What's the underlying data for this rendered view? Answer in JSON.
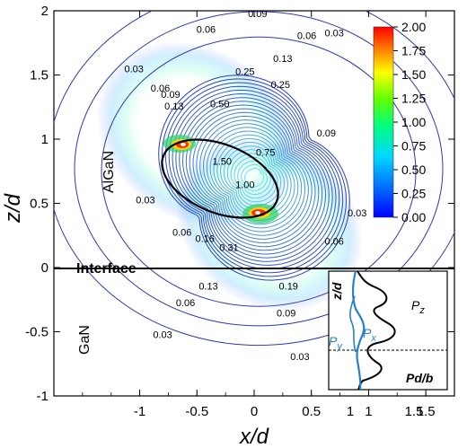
{
  "chart_data": {
    "type": "contour",
    "xlabel": "x/d",
    "ylabel": "z/d",
    "xlim": [
      -1.75,
      1.75
    ],
    "ylim": [
      -1,
      2
    ],
    "xticks": [
      "-1",
      "-0.5",
      "0",
      "0.5",
      "1",
      "1.5"
    ],
    "yticks": [
      "-1",
      "-0.5",
      "0",
      "0.5",
      "1",
      "1.5",
      "2"
    ],
    "colorbar": {
      "ticks": [
        "2.00",
        "1.75",
        "1.50",
        "1.25",
        "1.00",
        "0.75",
        "0.50",
        "0.25",
        "0.00"
      ],
      "range": [
        0,
        2
      ]
    },
    "regions": {
      "upper": "AlGaN",
      "lower": "GaN",
      "interface": "Interface"
    },
    "contour_labels": [
      {
        "text": "0.09",
        "x": 0.03,
        "z": 1.95
      },
      {
        "text": "0.06",
        "x": -0.42,
        "z": 1.83
      },
      {
        "text": "0.06",
        "x": 0.46,
        "z": 1.78
      },
      {
        "text": "0.03",
        "x": 0.7,
        "z": 1.8
      },
      {
        "text": "0.03",
        "x": -1.05,
        "z": 1.52
      },
      {
        "text": "0.06",
        "x": -0.82,
        "z": 1.37
      },
      {
        "text": "0.09",
        "x": -0.73,
        "z": 1.32
      },
      {
        "text": "0.13",
        "x": -0.7,
        "z": 1.23
      },
      {
        "text": "0.13",
        "x": 0.25,
        "z": 1.6
      },
      {
        "text": "0.25",
        "x": -0.08,
        "z": 1.5
      },
      {
        "text": "0.25",
        "x": 0.23,
        "z": 1.4
      },
      {
        "text": "0.50",
        "x": -0.3,
        "z": 1.25
      },
      {
        "text": "0.75",
        "x": 0.1,
        "z": 0.87
      },
      {
        "text": "1.50",
        "x": -0.28,
        "z": 0.8
      },
      {
        "text": "1.00",
        "x": -0.08,
        "z": 0.62
      },
      {
        "text": "0.09",
        "x": 0.63,
        "z": 1.02
      },
      {
        "text": "0.03",
        "x": -0.95,
        "z": 0.5
      },
      {
        "text": "0.03",
        "x": 0.9,
        "z": 0.4
      },
      {
        "text": "0.06",
        "x": -0.63,
        "z": 0.25
      },
      {
        "text": "0.16",
        "x": -0.43,
        "z": 0.2
      },
      {
        "text": "0.31",
        "x": -0.22,
        "z": 0.13
      },
      {
        "text": "0.06",
        "x": 0.7,
        "z": 0.18
      },
      {
        "text": "0.19",
        "x": 0.3,
        "z": -0.17
      },
      {
        "text": "0.13",
        "x": -0.4,
        "z": -0.17
      },
      {
        "text": "0.09",
        "x": 0.28,
        "z": -0.38
      },
      {
        "text": "0.06",
        "x": -0.6,
        "z": -0.3
      },
      {
        "text": "0.03",
        "x": -0.8,
        "z": -0.55
      },
      {
        "text": "0.03",
        "x": 0.4,
        "z": -0.72
      }
    ],
    "inset": {
      "ylabel": "z/d",
      "xlabel": "Pd/b",
      "xticks": [
        "1",
        "1.5"
      ],
      "series": [
        {
          "name": "P_z",
          "color": "#000000"
        },
        {
          "name": "P_x",
          "color": "#2a7fc9"
        },
        {
          "name": "P_y",
          "color": "#2a7fc9"
        }
      ]
    }
  }
}
